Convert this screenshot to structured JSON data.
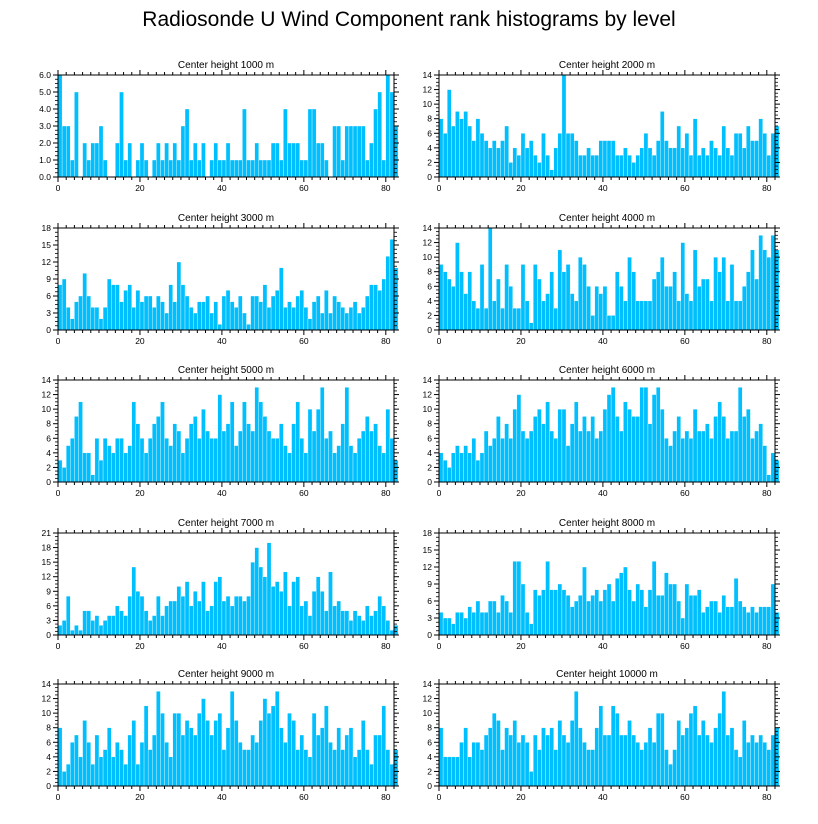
{
  "title": "Radiosonde U Wind Component rank histograms by level",
  "colors": {
    "bar": "#00bfff",
    "axis": "#000000",
    "bar_edge": "#ffffff"
  },
  "chart_data": [
    {
      "type": "bar",
      "title": "Center height 1000 m",
      "xlim": [
        0,
        82
      ],
      "ylim": [
        0,
        6
      ],
      "x_ticks": [
        0,
        20,
        40,
        60,
        80
      ],
      "y_ticks": [
        0,
        1,
        2,
        3,
        4,
        5,
        6
      ],
      "y_tick_labels": [
        "0.0",
        "1.0",
        "2.0",
        "3.0",
        "4.0",
        "5.0",
        "6.0"
      ],
      "values": [
        6,
        3,
        3,
        1,
        5,
        0,
        2,
        1,
        2,
        2,
        3,
        1,
        0,
        0,
        2,
        5,
        1,
        2,
        0,
        1,
        2,
        1,
        0,
        1,
        2,
        1,
        2,
        1,
        2,
        1,
        3,
        4,
        1,
        2,
        1,
        2,
        0,
        1,
        2,
        1,
        1,
        2,
        1,
        1,
        1,
        4,
        1,
        1,
        2,
        1,
        1,
        1,
        2,
        2,
        1,
        4,
        2,
        2,
        2,
        1,
        1,
        4,
        4,
        2,
        2,
        1,
        0,
        3,
        3,
        1,
        3,
        3,
        3,
        3,
        3,
        1,
        2,
        4,
        5,
        1,
        6,
        5,
        3
      ]
    },
    {
      "type": "bar",
      "title": "Center height 2000 m",
      "xlim": [
        0,
        82
      ],
      "ylim": [
        0,
        14
      ],
      "x_ticks": [
        0,
        20,
        40,
        60,
        80
      ],
      "y_ticks": [
        0,
        2,
        4,
        6,
        8,
        10,
        12,
        14
      ],
      "y_tick_labels": [
        "0",
        "2",
        "4",
        "6",
        "8",
        "10",
        "12",
        "14"
      ],
      "values": [
        8,
        6,
        12,
        7,
        9,
        8,
        9,
        7,
        5,
        8,
        6,
        5,
        4,
        5,
        4,
        5,
        7,
        2,
        4,
        3,
        6,
        4,
        5,
        3,
        2,
        6,
        3,
        1,
        4,
        6,
        14,
        6,
        6,
        5,
        3,
        3,
        4,
        3,
        3,
        5,
        5,
        5,
        5,
        3,
        3,
        4,
        3,
        2,
        3,
        4,
        6,
        4,
        3,
        5,
        9,
        5,
        4,
        4,
        7,
        4,
        6,
        3,
        8,
        3,
        4,
        3,
        5,
        4,
        3,
        7,
        4,
        3,
        6,
        6,
        4,
        7,
        5,
        5,
        8,
        6,
        3,
        6,
        7
      ]
    },
    {
      "type": "bar",
      "title": "Center height 3000 m",
      "xlim": [
        0,
        82
      ],
      "ylim": [
        0,
        18
      ],
      "x_ticks": [
        0,
        20,
        40,
        60,
        80
      ],
      "y_ticks": [
        0,
        3,
        6,
        9,
        12,
        15,
        18
      ],
      "y_tick_labels": [
        "0",
        "3",
        "6",
        "9",
        "12",
        "15",
        "18"
      ],
      "values": [
        8,
        9,
        4,
        2,
        5,
        6,
        10,
        6,
        4,
        4,
        2,
        4,
        9,
        8,
        8,
        5,
        7,
        8,
        4,
        7,
        5,
        6,
        6,
        4,
        6,
        5,
        3,
        8,
        5,
        12,
        8,
        6,
        4,
        3,
        5,
        5,
        6,
        3,
        5,
        1,
        6,
        7,
        5,
        4,
        6,
        3,
        1,
        6,
        6,
        5,
        8,
        4,
        6,
        7,
        11,
        4,
        5,
        4,
        6,
        7,
        4,
        2,
        5,
        6,
        3,
        7,
        3,
        6,
        5,
        4,
        3,
        4,
        5,
        3,
        4,
        6,
        8,
        8,
        7,
        9,
        13,
        16,
        11
      ]
    },
    {
      "type": "bar",
      "title": "Center height 4000 m",
      "xlim": [
        0,
        82
      ],
      "ylim": [
        0,
        14
      ],
      "x_ticks": [
        0,
        20,
        40,
        60,
        80
      ],
      "y_ticks": [
        0,
        2,
        4,
        6,
        8,
        10,
        12,
        14
      ],
      "y_tick_labels": [
        "0",
        "2",
        "4",
        "6",
        "8",
        "10",
        "12",
        "14"
      ],
      "values": [
        9,
        8,
        7,
        6,
        12,
        8,
        5,
        8,
        4,
        3,
        9,
        3,
        14,
        4,
        7,
        3,
        9,
        6,
        3,
        3,
        9,
        4,
        1,
        9,
        7,
        4,
        5,
        8,
        3,
        11,
        8,
        9,
        5,
        4,
        10,
        9,
        6,
        2,
        6,
        5,
        6,
        2,
        2,
        8,
        6,
        4,
        10,
        8,
        4,
        4,
        4,
        4,
        7,
        8,
        10,
        6,
        6,
        8,
        4,
        12,
        5,
        4,
        11,
        6,
        7,
        7,
        4,
        10,
        8,
        10,
        4,
        9,
        4,
        4,
        6,
        8,
        11,
        7,
        13,
        11,
        10,
        13,
        11
      ]
    },
    {
      "type": "bar",
      "title": "Center height 5000 m",
      "xlim": [
        0,
        82
      ],
      "ylim": [
        0,
        14
      ],
      "x_ticks": [
        0,
        20,
        40,
        60,
        80
      ],
      "y_ticks": [
        0,
        2,
        4,
        6,
        8,
        10,
        12,
        14
      ],
      "y_tick_labels": [
        "0",
        "2",
        "4",
        "6",
        "8",
        "10",
        "12",
        "14"
      ],
      "values": [
        3,
        2,
        5,
        6,
        9,
        11,
        4,
        4,
        1,
        6,
        3,
        6,
        5,
        4,
        6,
        6,
        4,
        5,
        11,
        8,
        6,
        4,
        6,
        8,
        9,
        11,
        6,
        5,
        8,
        7,
        4,
        6,
        8,
        9,
        6,
        10,
        7,
        6,
        6,
        12,
        7,
        8,
        11,
        5,
        7,
        11,
        8,
        7,
        13,
        11,
        9,
        7,
        6,
        6,
        8,
        5,
        4,
        8,
        11,
        6,
        4,
        10,
        7,
        10,
        13,
        6,
        7,
        4,
        5,
        8,
        13,
        5,
        4,
        6,
        7,
        9,
        7,
        8,
        5,
        4,
        10,
        6,
        3
      ]
    },
    {
      "type": "bar",
      "title": "Center height 6000 m",
      "xlim": [
        0,
        82
      ],
      "ylim": [
        0,
        14
      ],
      "x_ticks": [
        0,
        20,
        40,
        60,
        80
      ],
      "y_ticks": [
        0,
        2,
        4,
        6,
        8,
        10,
        12,
        14
      ],
      "y_tick_labels": [
        "0",
        "2",
        "4",
        "6",
        "8",
        "10",
        "12",
        "14"
      ],
      "values": [
        4,
        3,
        2,
        4,
        5,
        4,
        5,
        4,
        6,
        3,
        4,
        7,
        5,
        6,
        9,
        6,
        8,
        6,
        10,
        12,
        7,
        6,
        7,
        9,
        10,
        8,
        11,
        7,
        6,
        10,
        10,
        5,
        8,
        11,
        7,
        9,
        7,
        9,
        6,
        7,
        10,
        12,
        13,
        9,
        7,
        11,
        10,
        9,
        9,
        13,
        13,
        8,
        12,
        13,
        10,
        6,
        5,
        7,
        9,
        6,
        7,
        6,
        10,
        7,
        7,
        8,
        6,
        9,
        11,
        9,
        6,
        7,
        7,
        13,
        9,
        10,
        6,
        7,
        8,
        5,
        1,
        4,
        3
      ]
    },
    {
      "type": "bar",
      "title": "Center height 7000 m",
      "xlim": [
        0,
        82
      ],
      "ylim": [
        0,
        21
      ],
      "x_ticks": [
        0,
        20,
        40,
        60,
        80
      ],
      "y_ticks": [
        0,
        3,
        6,
        9,
        12,
        15,
        18,
        21
      ],
      "y_tick_labels": [
        "0",
        "3",
        "6",
        "9",
        "12",
        "15",
        "18",
        "21"
      ],
      "values": [
        2,
        3,
        8,
        1,
        2,
        1,
        5,
        5,
        3,
        4,
        2,
        3,
        4,
        4,
        6,
        5,
        4,
        8,
        14,
        9,
        8,
        5,
        3,
        4,
        8,
        4,
        6,
        7,
        7,
        10,
        8,
        11,
        6,
        9,
        7,
        11,
        5,
        6,
        11,
        12,
        7,
        8,
        6,
        8,
        8,
        7,
        8,
        15,
        18,
        14,
        12,
        19,
        10,
        11,
        9,
        13,
        6,
        11,
        12,
        6,
        7,
        4,
        9,
        12,
        9,
        5,
        13,
        6,
        7,
        5,
        5,
        3,
        5,
        4,
        3,
        6,
        4,
        5,
        8,
        6,
        3,
        1,
        2
      ]
    },
    {
      "type": "bar",
      "title": "Center height 8000 m",
      "xlim": [
        0,
        82
      ],
      "ylim": [
        0,
        18
      ],
      "x_ticks": [
        0,
        20,
        40,
        60,
        80
      ],
      "y_ticks": [
        0,
        3,
        6,
        9,
        12,
        15,
        18
      ],
      "y_tick_labels": [
        "0",
        "3",
        "6",
        "9",
        "12",
        "15",
        "18"
      ],
      "values": [
        4,
        3,
        3,
        2,
        4,
        4,
        3,
        5,
        4,
        6,
        4,
        4,
        6,
        6,
        4,
        7,
        6,
        4,
        13,
        13,
        9,
        4,
        2,
        8,
        7,
        8,
        13,
        8,
        8,
        9,
        8,
        7,
        5,
        6,
        7,
        12,
        6,
        7,
        8,
        6,
        8,
        9,
        6,
        10,
        11,
        12,
        8,
        6,
        9,
        8,
        5,
        8,
        13,
        7,
        7,
        11,
        9,
        9,
        6,
        3,
        9,
        7,
        7,
        8,
        4,
        5,
        6,
        6,
        4,
        7,
        5,
        5,
        10,
        6,
        5,
        4,
        5,
        4,
        5,
        5,
        5,
        9,
        4
      ]
    },
    {
      "type": "bar",
      "title": "Center height 9000 m",
      "xlim": [
        0,
        82
      ],
      "ylim": [
        0,
        14
      ],
      "x_ticks": [
        0,
        20,
        40,
        60,
        80
      ],
      "y_ticks": [
        0,
        2,
        4,
        6,
        8,
        10,
        12,
        14
      ],
      "y_tick_labels": [
        "0",
        "2",
        "4",
        "6",
        "8",
        "10",
        "12",
        "14"
      ],
      "values": [
        8,
        2,
        3,
        6,
        7,
        4,
        9,
        6,
        3,
        7,
        4,
        5,
        8,
        4,
        6,
        5,
        3,
        7,
        9,
        3,
        6,
        11,
        5,
        7,
        13,
        10,
        6,
        4,
        10,
        10,
        7,
        9,
        8,
        7,
        10,
        12,
        9,
        7,
        9,
        10,
        5,
        8,
        13,
        9,
        6,
        5,
        5,
        7,
        6,
        9,
        12,
        10,
        11,
        13,
        8,
        6,
        10,
        9,
        5,
        7,
        5,
        4,
        10,
        7,
        8,
        11,
        6,
        5,
        8,
        5,
        7,
        8,
        4,
        5,
        9,
        5,
        3,
        7,
        7,
        11,
        5,
        3,
        5
      ]
    },
    {
      "type": "bar",
      "title": "Center height 10000 m",
      "xlim": [
        0,
        82
      ],
      "ylim": [
        0,
        14
      ],
      "x_ticks": [
        0,
        20,
        40,
        60,
        80
      ],
      "y_ticks": [
        0,
        2,
        4,
        6,
        8,
        10,
        12,
        14
      ],
      "y_tick_labels": [
        "0",
        "2",
        "4",
        "6",
        "8",
        "10",
        "12",
        "14"
      ],
      "values": [
        8,
        4,
        4,
        4,
        4,
        6,
        8,
        4,
        6,
        6,
        5,
        7,
        8,
        10,
        9,
        5,
        8,
        7,
        9,
        6,
        7,
        6,
        2,
        7,
        5,
        8,
        7,
        8,
        5,
        9,
        7,
        6,
        9,
        13,
        8,
        6,
        5,
        5,
        8,
        11,
        7,
        7,
        11,
        10,
        7,
        7,
        9,
        7,
        6,
        5,
        6,
        8,
        6,
        10,
        10,
        5,
        3,
        5,
        9,
        7,
        8,
        10,
        11,
        7,
        9,
        7,
        6,
        8,
        10,
        13,
        7,
        8,
        5,
        4,
        9,
        6,
        7,
        6,
        7,
        6,
        5,
        7,
        8
      ]
    }
  ]
}
